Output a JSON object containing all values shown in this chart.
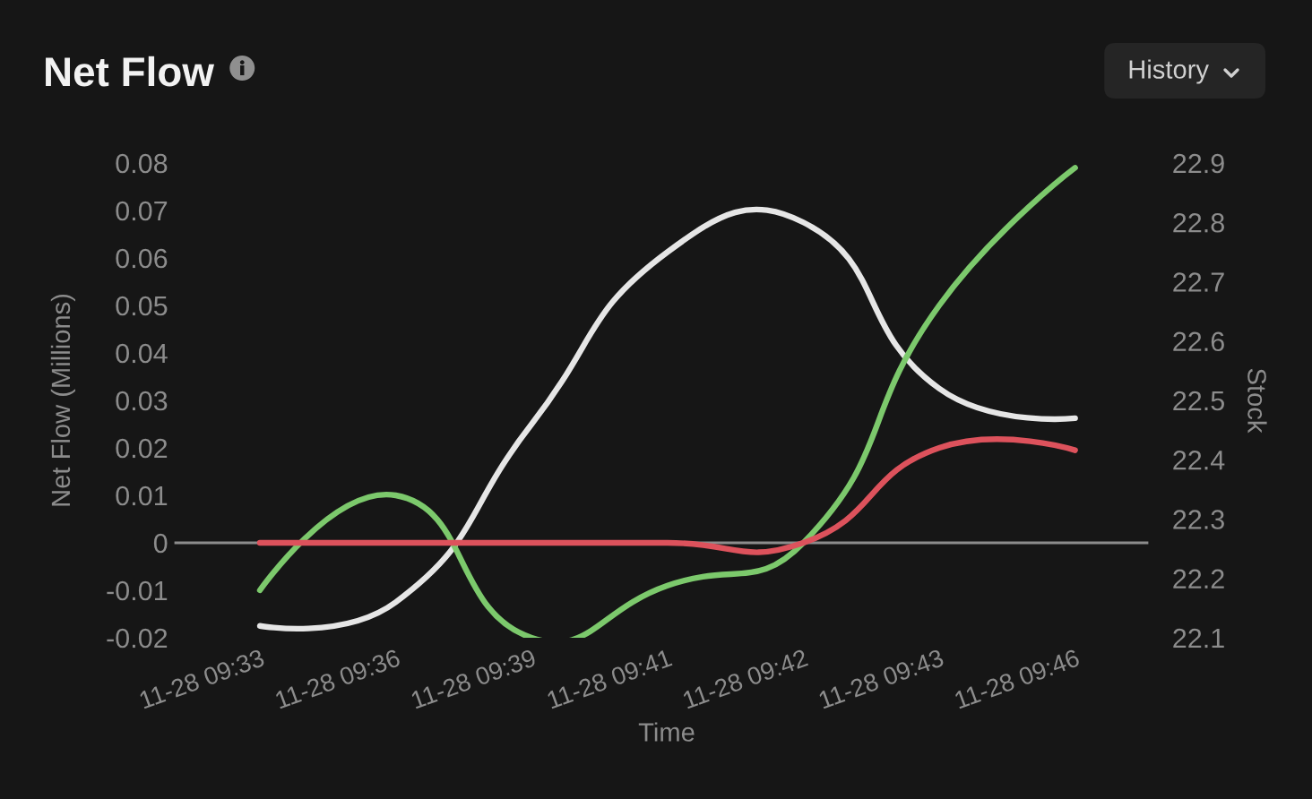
{
  "chart_data": {
    "type": "line",
    "title": "Net Flow",
    "xlabel": "Time",
    "ylabel": "Net Flow (Millions)",
    "y2label": "Stock",
    "categories": [
      "11-28 09:33",
      "11-28 09:36",
      "11-28 09:39",
      "11-28 09:41",
      "11-28 09:42",
      "11-28 09:43",
      "11-28 09:46"
    ],
    "series": [
      {
        "color": "#7cc96c",
        "values": [
          -0.01,
          0.01,
          -0.02,
          -0.009,
          0,
          0.05,
          0.079
        ]
      },
      {
        "color": "#dd525c",
        "values": [
          0,
          0,
          0,
          0,
          0,
          0.02,
          0.0195
        ]
      },
      {
        "color": "#e6e6e6",
        "axis": "y2",
        "values": [
          22.12,
          22.16,
          22.46,
          22.75,
          22.8,
          22.52,
          22.47
        ]
      }
    ],
    "ylim": [
      -0.02,
      0.08
    ],
    "yticks": [
      -0.02,
      -0.01,
      0,
      0.01,
      0.02,
      0.03,
      0.04,
      0.05,
      0.06,
      0.07,
      0.08
    ],
    "y2lim": [
      22.1,
      22.9
    ],
    "y2ticks": [
      22.1,
      22.2,
      22.3,
      22.4,
      22.5,
      22.6,
      22.7,
      22.8,
      22.9
    ],
    "annotations": [
      "History"
    ]
  }
}
